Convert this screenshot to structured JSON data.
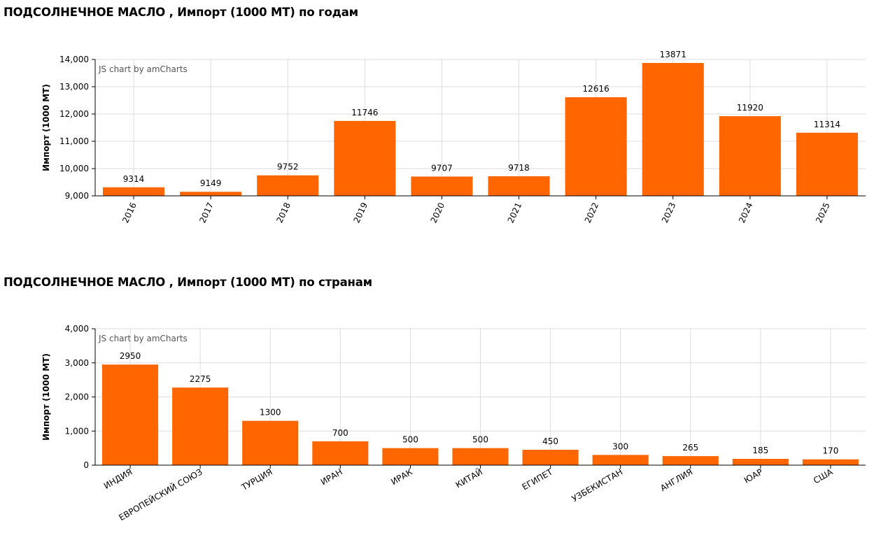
{
  "chart_data": [
    {
      "type": "bar",
      "title": "ПОДСОЛНЕЧНОЕ МАСЛО , Импорт (1000 МТ) по годам",
      "ylabel": "Импорт (1000 МТ)",
      "xlabel": "",
      "credit": "JS chart by amCharts",
      "categories": [
        "2016",
        "2017",
        "2018",
        "2019",
        "2020",
        "2021",
        "2022",
        "2023",
        "2024",
        "2025"
      ],
      "values": [
        9314,
        9149,
        9752,
        11746,
        9707,
        9718,
        12616,
        13871,
        11920,
        11314
      ],
      "ylim": [
        9000,
        14000
      ],
      "yticks": [
        "9,000",
        "10,000",
        "11,000",
        "12,000",
        "13,000",
        "14,000"
      ],
      "label_rotation": -65,
      "grid": true,
      "color": "#ff6600"
    },
    {
      "type": "bar",
      "title": "ПОДСОЛНЕЧНОЕ МАСЛО , Импорт (1000 МТ) по странам",
      "ylabel": "Импорт (1000 МТ)",
      "xlabel": "",
      "credit": "JS chart by amCharts",
      "categories": [
        "ИНДИЯ",
        "ЕВРОПЕЙСКИЙ СОЮЗ",
        "ТУРЦИЯ",
        "ИРАН",
        "ИРАК",
        "КИТАЙ",
        "ЕГИПЕТ",
        "УЗБЕКИСТАН",
        "АНГЛИЯ",
        "ЮАР",
        "США"
      ],
      "values": [
        2950,
        2275,
        1300,
        700,
        500,
        500,
        450,
        300,
        265,
        185,
        170
      ],
      "ylim": [
        0,
        4000
      ],
      "yticks": [
        "0",
        "1,000",
        "2,000",
        "3,000",
        "4,000"
      ],
      "label_rotation": -30,
      "grid": true,
      "color": "#ff6600"
    }
  ]
}
